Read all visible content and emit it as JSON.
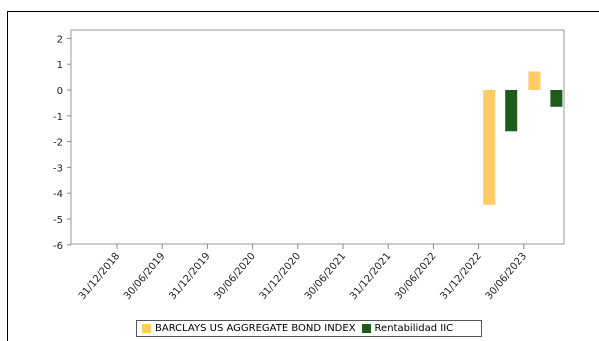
{
  "chart_data": {
    "type": "bar",
    "categories": [
      "31/12/2018",
      "30/06/2019",
      "31/12/2019",
      "30/06/2020",
      "31/12/2020",
      "30/06/2021",
      "31/12/2021",
      "30/06/2022",
      "31/12/2022",
      "30/06/2023"
    ],
    "series": [
      {
        "name": "BARCLAYS US AGGREGATE BOND INDEX",
        "color": "#FFCC66",
        "values": [
          null,
          null,
          null,
          null,
          null,
          null,
          null,
          null,
          -4.45,
          0.72
        ]
      },
      {
        "name": "Rentabilidad IIC",
        "color": "#1E5C1E",
        "values": [
          null,
          null,
          null,
          null,
          null,
          null,
          null,
          null,
          -1.6,
          -0.65
        ]
      }
    ],
    "yticks": [
      2,
      1,
      0,
      -1,
      -2,
      -3,
      -4,
      -5,
      -6
    ],
    "ylim": [
      -6,
      2.2
    ],
    "grid": false,
    "legend_position": "bottom",
    "title": "",
    "xlabel": "",
    "ylabel": ""
  }
}
